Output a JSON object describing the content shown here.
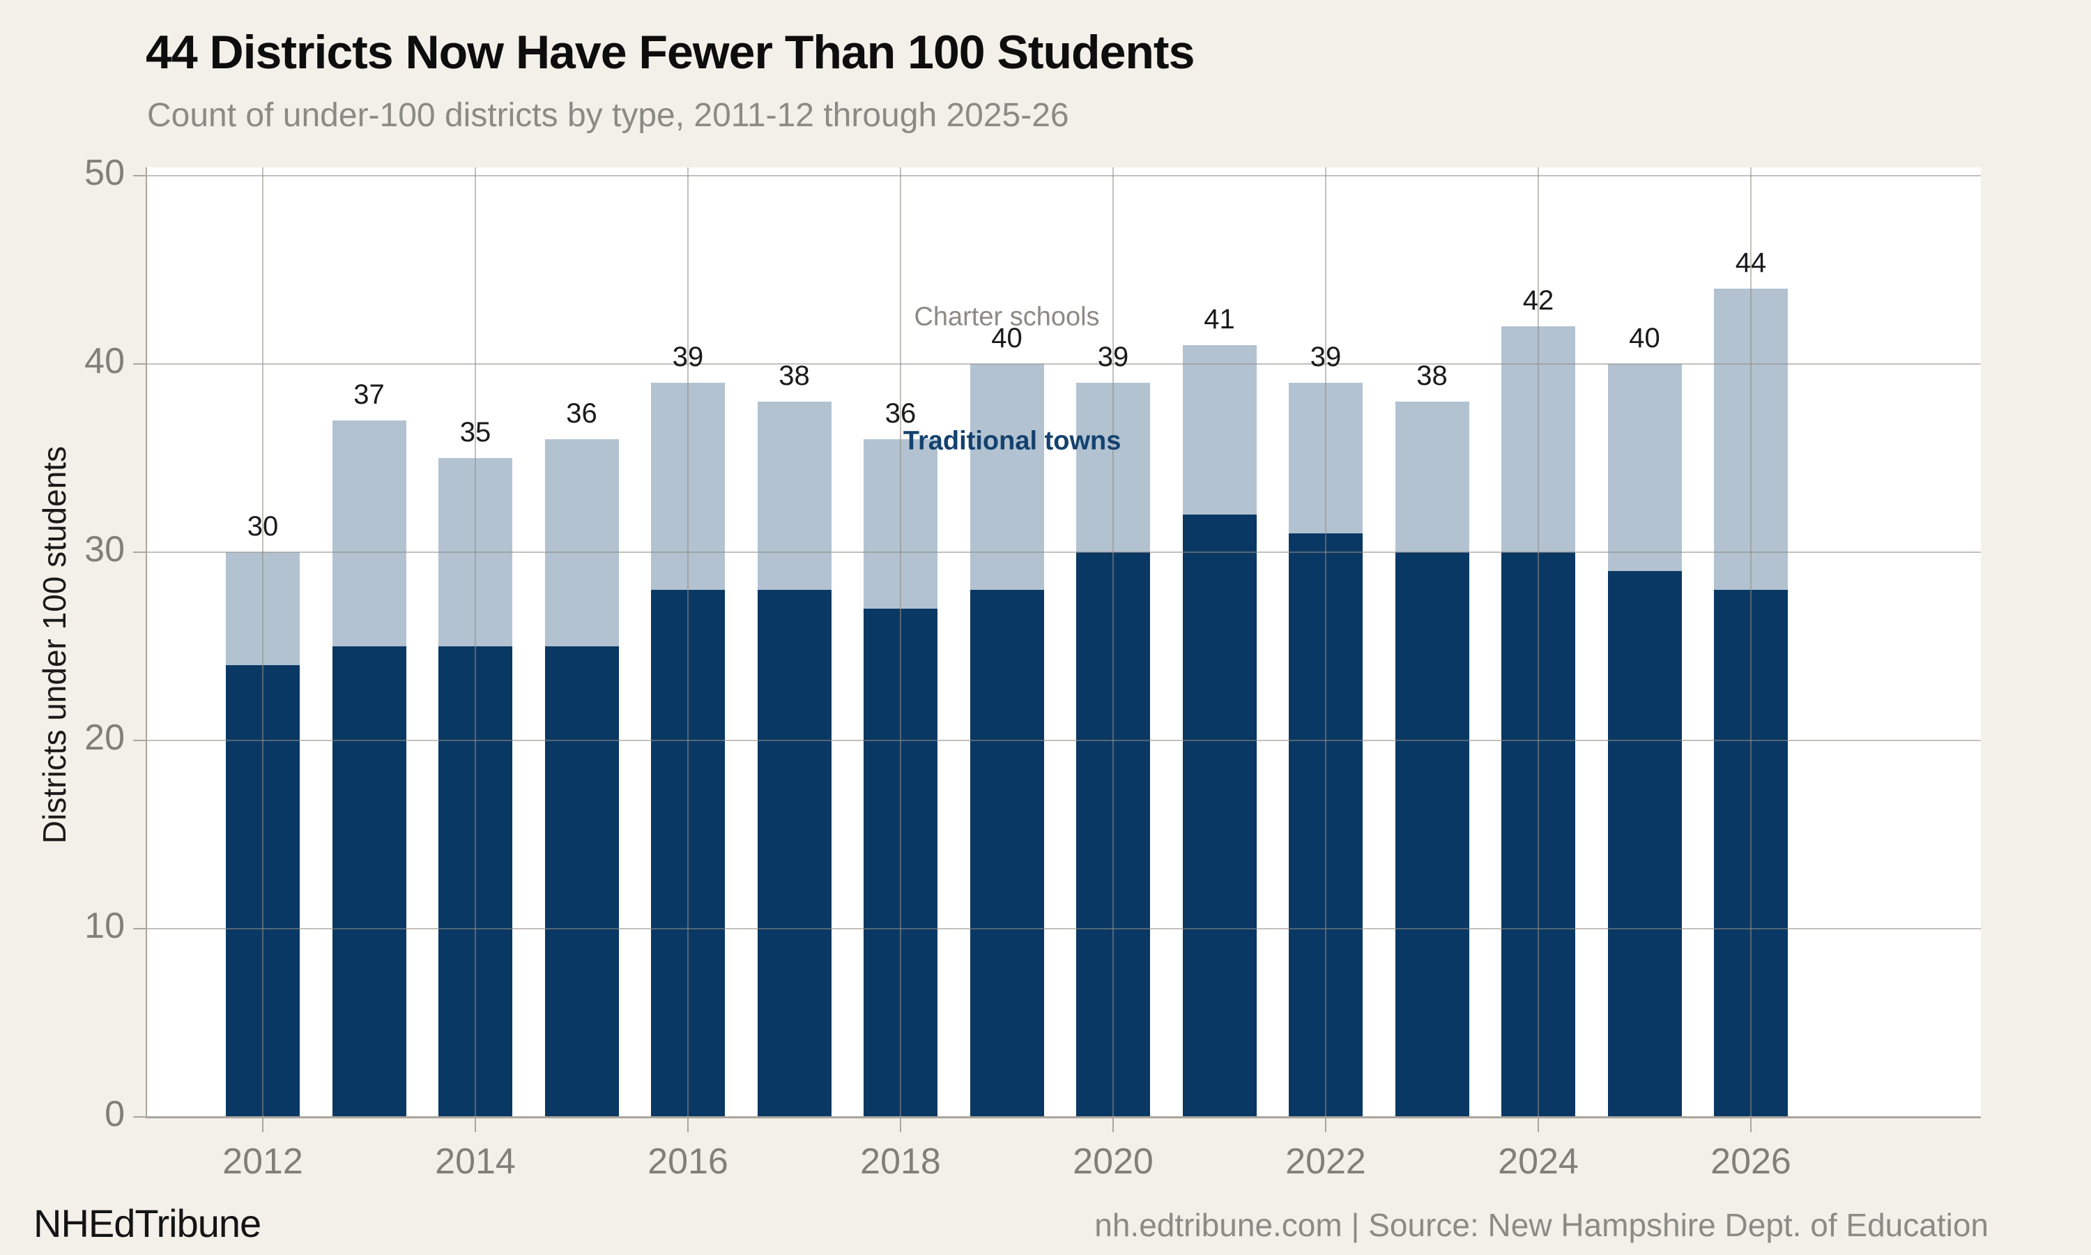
{
  "header": {
    "title": "44 Districts Now Have Fewer Than 100 Students",
    "subtitle": "Count of under-100 districts by type, 2011-12 through 2025-26"
  },
  "footer": {
    "brand": "NHEdTribune",
    "source": "nh.edtribune.com | Source: New Hampshire Dept. of Education"
  },
  "chart_data": {
    "type": "bar",
    "stacked": true,
    "title": "44 Districts Now Have Fewer Than 100 Students",
    "subtitle": "Count of under-100 districts by type, 2011-12 through 2025-26",
    "categories": [
      "2012",
      "2013",
      "2014",
      "2015",
      "2016",
      "2017",
      "2018",
      "2019",
      "2020",
      "2021",
      "2022",
      "2023",
      "2024",
      "2025",
      "2026"
    ],
    "series": [
      {
        "name": "Traditional towns",
        "color": "#0a3864",
        "values": [
          24,
          25,
          25,
          25,
          28,
          28,
          27,
          28,
          30,
          32,
          31,
          30,
          30,
          29,
          28
        ]
      },
      {
        "name": "Charter schools",
        "color": "#b2c2d1",
        "values": [
          6,
          12,
          10,
          11,
          11,
          10,
          9,
          12,
          9,
          9,
          8,
          8,
          12,
          11,
          16
        ]
      }
    ],
    "totals": [
      "30",
      "37",
      "35",
      "36",
      "39",
      "38",
      "36",
      "40",
      "39",
      "41",
      "39",
      "38",
      "42",
      "40",
      "44"
    ],
    "ylabel": "Districts under 100 students",
    "xlabel": "",
    "ylim": [
      0,
      50
    ],
    "yticks": [
      "0",
      "10",
      "20",
      "30",
      "40",
      "50"
    ],
    "xticks": [
      "2012",
      "2014",
      "2016",
      "2018",
      "2020",
      "2022",
      "2024",
      "2026"
    ],
    "grid": true,
    "legend_position": "in-plot annotations",
    "annotations": [
      {
        "text": "Charter schools",
        "color": "#8b8a85",
        "bold": false,
        "x_year": 2019,
        "y_value": 42.5
      },
      {
        "text": "Traditional towns",
        "color": "#14416e",
        "bold": true,
        "x_year": 2019.05,
        "y_value": 35.9
      }
    ]
  }
}
